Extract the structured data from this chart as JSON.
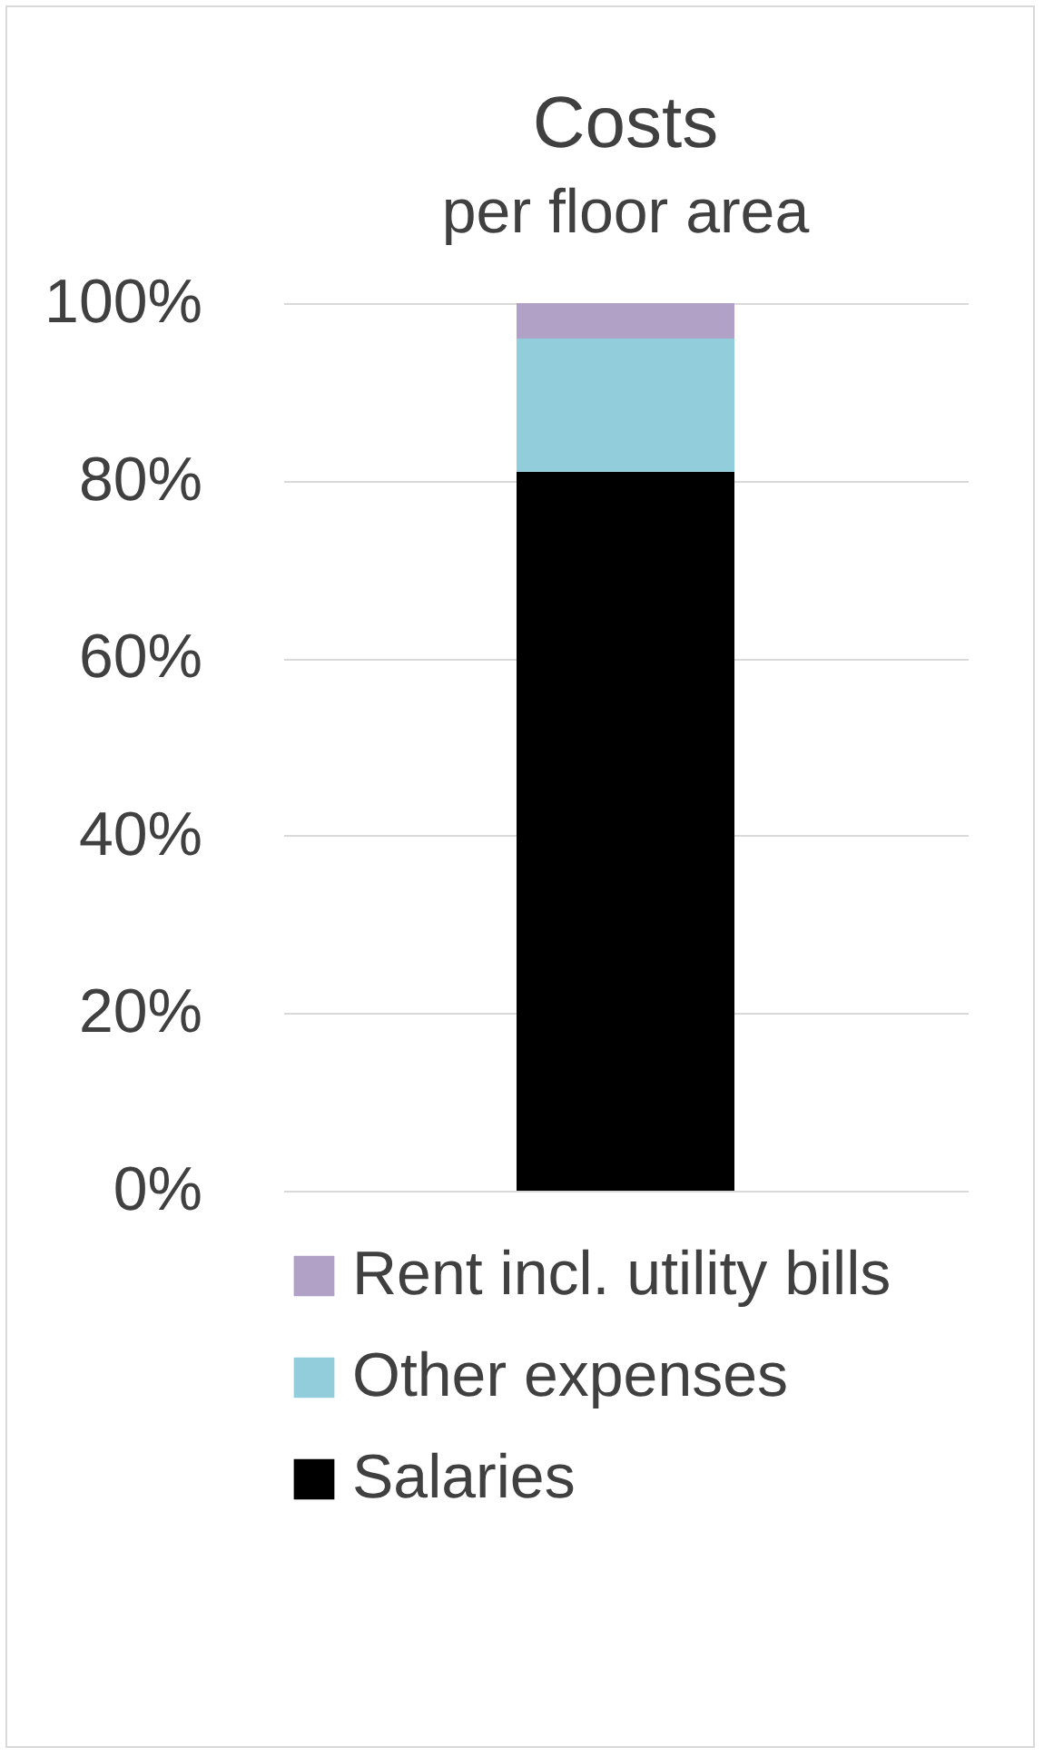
{
  "chart_data": {
    "type": "bar",
    "title": "Costs",
    "subtitle": "per floor area",
    "categories": [
      null
    ],
    "stacked": true,
    "series": [
      {
        "name": "Salaries",
        "color": "#000000",
        "values": [
          81
        ]
      },
      {
        "name": "Other expenses",
        "color": "#92cddc",
        "values": [
          15
        ]
      },
      {
        "name": "Rent incl. utility bills",
        "color": "#b2a1c7",
        "values": [
          4
        ]
      }
    ],
    "ylim": [
      0,
      100
    ],
    "yticks": [
      {
        "value": 0,
        "label": "0%"
      },
      {
        "value": 20,
        "label": "20%"
      },
      {
        "value": 40,
        "label": "40%"
      },
      {
        "value": 60,
        "label": "60%"
      },
      {
        "value": 80,
        "label": "80%"
      },
      {
        "value": 100,
        "label": "100%"
      }
    ],
    "grid": "y",
    "legend": "bottom",
    "tick_labels": "y"
  }
}
